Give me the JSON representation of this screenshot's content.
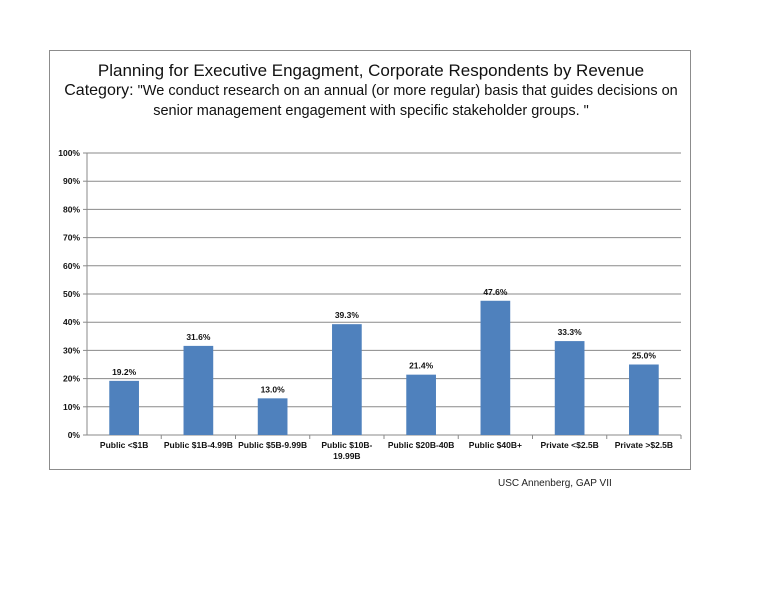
{
  "chart_data": {
    "type": "bar",
    "title": "Planning for Executive Engagment, Corporate Respondents by Revenue",
    "subtitle_lead": "Category:",
    "subtitle": " \"We conduct research on an annual (or more regular) basis that guides decisions on senior management engagement with specific stakeholder groups. \"",
    "categories": [
      "Public <$1B",
      "Public $1B-4.99B",
      "Public $5B-9.99B",
      "Public $10B-19.99B",
      "Public $20B-40B",
      "Public $40B+",
      "Private <$2.5B",
      "Private >$2.5B"
    ],
    "values": [
      19.2,
      31.6,
      13.0,
      39.3,
      21.4,
      47.6,
      33.3,
      25.0
    ],
    "value_labels": [
      "19.2%",
      "31.6%",
      "13.0%",
      "39.3%",
      "21.4%",
      "47.6%",
      "33.3%",
      "25.0%"
    ],
    "ylim": [
      0,
      100
    ],
    "yticks": [
      "0%",
      "10%",
      "20%",
      "30%",
      "40%",
      "50%",
      "60%",
      "70%",
      "80%",
      "90%",
      "100%"
    ],
    "grid": true,
    "legend": "none",
    "bar_color": "#4f81bd"
  },
  "source_note": "USC Annenberg, GAP VII"
}
